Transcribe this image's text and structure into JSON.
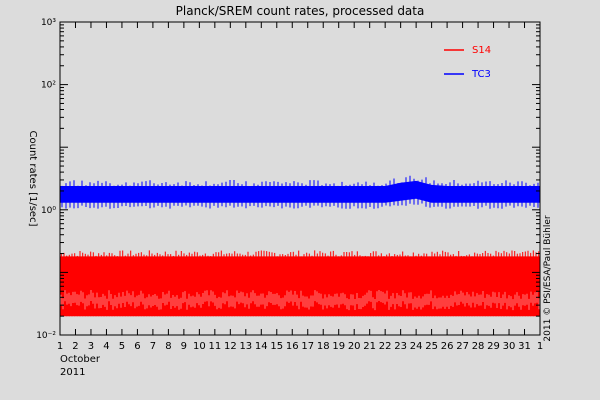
{
  "chart_data": {
    "type": "line",
    "title": "Planck/SREM count rates, processed data",
    "xlabel": "",
    "ylabel": "Count rates [1/sec]",
    "x_unit": "day of October 2011",
    "xlim": [
      1,
      32
    ],
    "ylim": [
      0.01,
      1000
    ],
    "y_scale": "log",
    "y_tick_labels": [
      "10⁻²",
      "10⁰",
      "10²",
      "10³"
    ],
    "y_tick_values": [
      0.01,
      1,
      100,
      1000
    ],
    "x_tick_labels": [
      "1",
      "2",
      "3",
      "4",
      "5",
      "6",
      "7",
      "8",
      "9",
      "10",
      "11",
      "12",
      "13",
      "14",
      "15",
      "16",
      "17",
      "18",
      "19",
      "20",
      "21",
      "22",
      "23",
      "24",
      "25",
      "26",
      "27",
      "28",
      "29",
      "30",
      "31",
      "1"
    ],
    "x_tick_values": [
      1,
      2,
      3,
      4,
      5,
      6,
      7,
      8,
      9,
      10,
      11,
      12,
      13,
      14,
      15,
      16,
      17,
      18,
      19,
      20,
      21,
      22,
      23,
      24,
      25,
      26,
      27,
      28,
      29,
      30,
      31,
      32
    ],
    "x_sub_label": "October",
    "x_sub_label2": "2011",
    "grid": false,
    "legend_position": "top-right",
    "series": [
      {
        "name": "S14",
        "color": "#ff0000",
        "x": [
          1,
          4,
          8,
          12,
          16,
          20,
          24,
          28,
          32
        ],
        "y_low": [
          0.02,
          0.02,
          0.02,
          0.02,
          0.02,
          0.02,
          0.02,
          0.02,
          0.02
        ],
        "y_high": [
          0.18,
          0.18,
          0.18,
          0.18,
          0.18,
          0.18,
          0.18,
          0.18,
          0.18
        ]
      },
      {
        "name": "TC3",
        "color": "#0000ff",
        "x": [
          1,
          4,
          8,
          12,
          16,
          20,
          22,
          23,
          24,
          25,
          26,
          28,
          32
        ],
        "y_low": [
          1.3,
          1.3,
          1.3,
          1.3,
          1.3,
          1.3,
          1.3,
          1.4,
          1.5,
          1.3,
          1.3,
          1.3,
          1.3
        ],
        "y_high": [
          2.4,
          2.4,
          2.4,
          2.4,
          2.4,
          2.4,
          2.4,
          2.7,
          2.9,
          2.5,
          2.4,
          2.4,
          2.4
        ]
      }
    ],
    "credit": "2011 © PSI/ESA/Paul Bühler"
  }
}
